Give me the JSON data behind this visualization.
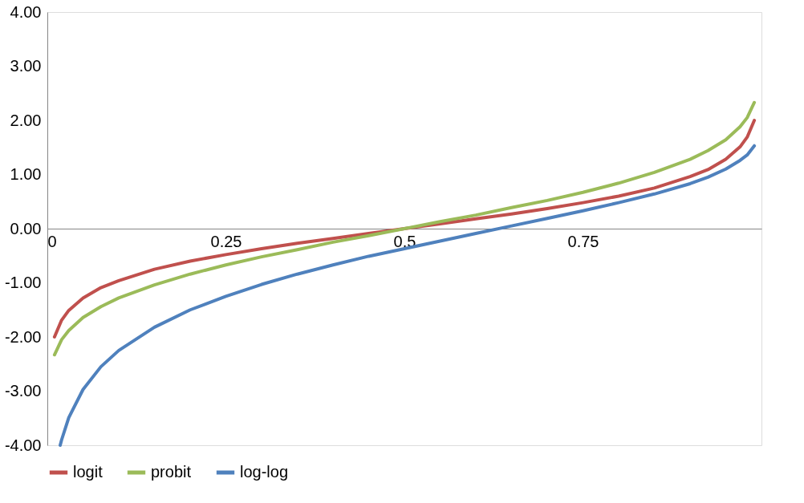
{
  "chart_data": {
    "type": "line",
    "x": [
      0.01,
      0.02,
      0.03,
      0.05,
      0.075,
      0.1,
      0.15,
      0.2,
      0.25,
      0.3,
      0.35,
      0.4,
      0.45,
      0.5,
      0.55,
      0.6,
      0.65,
      0.7,
      0.75,
      0.8,
      0.85,
      0.9,
      0.925,
      0.95,
      0.97,
      0.98,
      0.99
    ],
    "xlim": [
      0,
      1
    ],
    "xticks": [
      {
        "value": 0,
        "label": "0"
      },
      {
        "value": 0.25,
        "label": "0.25"
      },
      {
        "value": 0.5,
        "label": "0.5"
      },
      {
        "value": 0.75,
        "label": "0.75"
      }
    ],
    "ylim": [
      -4,
      4
    ],
    "yticks": [
      {
        "value": -4,
        "label": "-4.00"
      },
      {
        "value": -3,
        "label": "-3.00"
      },
      {
        "value": -2,
        "label": "-2.00"
      },
      {
        "value": -1,
        "label": "-1.00"
      },
      {
        "value": 0,
        "label": "0.00"
      },
      {
        "value": 1,
        "label": "1.00"
      },
      {
        "value": 2,
        "label": "2.00"
      },
      {
        "value": 3,
        "label": "3.00"
      },
      {
        "value": 4,
        "label": "4.00"
      }
    ],
    "grid": false,
    "legend": "bottom",
    "line_style": "solid",
    "marker": "none",
    "series": [
      {
        "name": "logit",
        "color": "#c0504d",
        "values": [
          -2.0,
          -1.69,
          -1.51,
          -1.28,
          -1.09,
          -0.96,
          -0.75,
          -0.6,
          -0.48,
          -0.37,
          -0.27,
          -0.18,
          -0.09,
          0.0,
          0.09,
          0.18,
          0.27,
          0.37,
          0.48,
          0.6,
          0.75,
          0.96,
          1.09,
          1.28,
          1.51,
          1.69,
          2.0
        ]
      },
      {
        "name": "probit",
        "color": "#9bbb59",
        "values": [
          -2.33,
          -2.05,
          -1.88,
          -1.64,
          -1.44,
          -1.28,
          -1.04,
          -0.84,
          -0.67,
          -0.52,
          -0.39,
          -0.25,
          -0.13,
          0.0,
          0.13,
          0.25,
          0.39,
          0.52,
          0.67,
          0.84,
          1.04,
          1.28,
          1.44,
          1.64,
          1.88,
          2.05,
          2.33
        ]
      },
      {
        "name": "log-log",
        "color": "#4f81bd",
        "x": [
          0.018,
          0.02,
          0.03,
          0.05,
          0.075,
          0.1,
          0.15,
          0.2,
          0.25,
          0.3,
          0.35,
          0.4,
          0.45,
          0.5,
          0.55,
          0.6,
          0.65,
          0.7,
          0.75,
          0.8,
          0.85,
          0.9,
          0.925,
          0.95,
          0.97,
          0.98,
          0.99
        ],
        "values": [
          -4.0,
          -3.9,
          -3.49,
          -2.97,
          -2.55,
          -2.25,
          -1.82,
          -1.5,
          -1.25,
          -1.03,
          -0.84,
          -0.67,
          -0.51,
          -0.37,
          -0.23,
          -0.09,
          0.05,
          0.19,
          0.33,
          0.48,
          0.64,
          0.83,
          0.95,
          1.1,
          1.26,
          1.36,
          1.53
        ]
      }
    ]
  }
}
